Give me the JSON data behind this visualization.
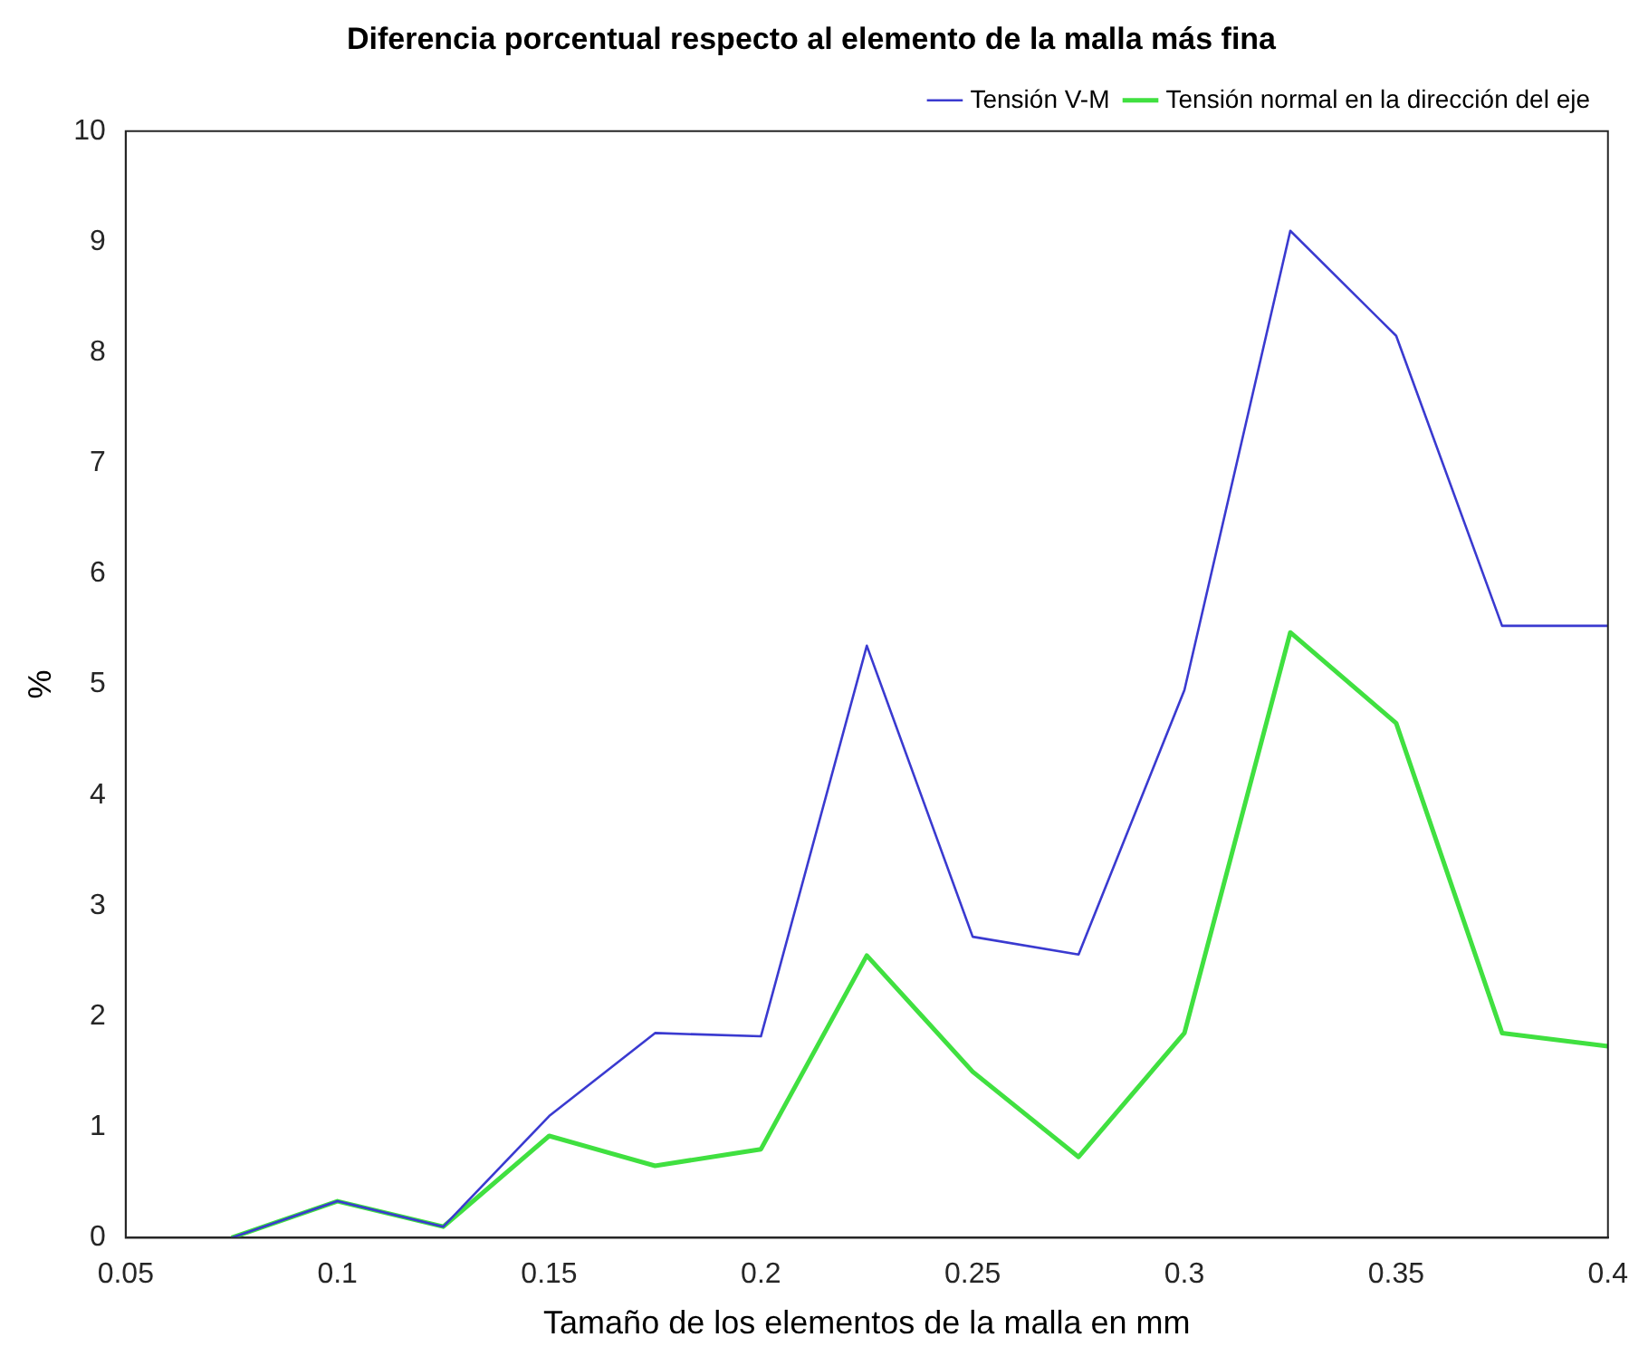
{
  "chart_data": {
    "type": "line",
    "title": "Diferencia porcentual respecto al elemento de la malla más fina",
    "xlabel": "Tamaño de los elementos de la malla en mm",
    "ylabel": "%",
    "x": [
      0.075,
      0.1,
      0.125,
      0.15,
      0.175,
      0.2,
      0.225,
      0.25,
      0.275,
      0.3,
      0.325,
      0.35,
      0.375,
      0.4
    ],
    "series": [
      {
        "name": "Tensión V-M",
        "color": "#3a3ad0",
        "values": [
          0,
          0.33,
          0.1,
          1.1,
          1.85,
          1.82,
          5.35,
          2.72,
          2.56,
          4.95,
          9.1,
          8.15,
          5.53,
          5.53
        ]
      },
      {
        "name": "Tensión normal en la dirección del eje",
        "color": "#40e040",
        "values": [
          0,
          0.33,
          0.1,
          0.92,
          0.65,
          0.8,
          2.55,
          1.5,
          0.73,
          1.85,
          5.47,
          4.65,
          1.85,
          1.73
        ]
      }
    ],
    "xlim": [
      0.05,
      0.4
    ],
    "xticks": [
      0.05,
      0.1,
      0.15,
      0.2,
      0.25,
      0.3,
      0.35,
      0.4
    ],
    "ylim": [
      0,
      10
    ],
    "yticks": [
      0,
      1,
      2,
      3,
      4,
      5,
      6,
      7,
      8,
      9,
      10
    ],
    "grid": false,
    "legend": "top right",
    "marker": "none",
    "line_style": "solid"
  }
}
